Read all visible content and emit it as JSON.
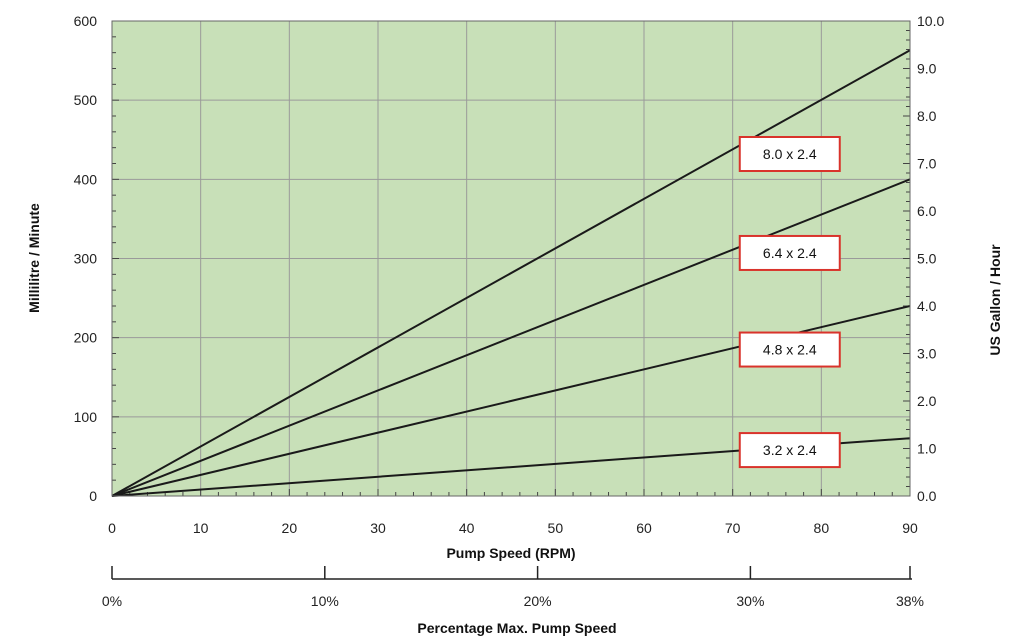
{
  "chart_data": {
    "type": "line",
    "xlabel": "Pump Speed (RPM)",
    "ylabel": "Millilitre / Minute",
    "y2label": "US  Gallon / Hour",
    "x2label": "Percentage Max. Pump Speed",
    "xlim": [
      0,
      90
    ],
    "ylim": [
      0,
      600
    ],
    "y2lim": [
      0.0,
      10.0
    ],
    "grid": true,
    "x_ticks": [
      "0",
      "10",
      "20",
      "30",
      "40",
      "50",
      "60",
      "70",
      "80",
      "90"
    ],
    "y_ticks": [
      "0",
      "100",
      "200",
      "300",
      "400",
      "500",
      "600"
    ],
    "y2_ticks": [
      "0.0",
      "1.0",
      "2.0",
      "3.0",
      "4.0",
      "5.0",
      "6.0",
      "7.0",
      "8.0",
      "9.0",
      "10.0"
    ],
    "x2_ticks": [
      {
        "rpm": 0,
        "label": "0%"
      },
      {
        "rpm": 24,
        "label": "10%"
      },
      {
        "rpm": 48,
        "label": "20%"
      },
      {
        "rpm": 72,
        "label": "30%"
      },
      {
        "rpm": 90,
        "label": "38%"
      }
    ],
    "series": [
      {
        "name": "8.0 x 2.4",
        "x": [
          0,
          90
        ],
        "y": [
          0,
          563
        ],
        "label_at": [
          70.8,
          432
        ]
      },
      {
        "name": "6.4 x 2.4",
        "x": [
          0,
          90
        ],
        "y": [
          0,
          400
        ],
        "label_at": [
          70.8,
          307
        ]
      },
      {
        "name": "4.8 x 2.4",
        "x": [
          0,
          90
        ],
        "y": [
          0,
          240
        ],
        "label_at": [
          70.8,
          185
        ]
      },
      {
        "name": "3.2 x 2.4",
        "x": [
          0,
          90
        ],
        "y": [
          0,
          73
        ],
        "label_at": [
          70.8,
          58
        ]
      }
    ]
  },
  "colors": {
    "plot_background": "#c8e0b8",
    "grid": "#9a9a9a",
    "line": "#1a1a1a",
    "label_border": "#d9332b"
  }
}
